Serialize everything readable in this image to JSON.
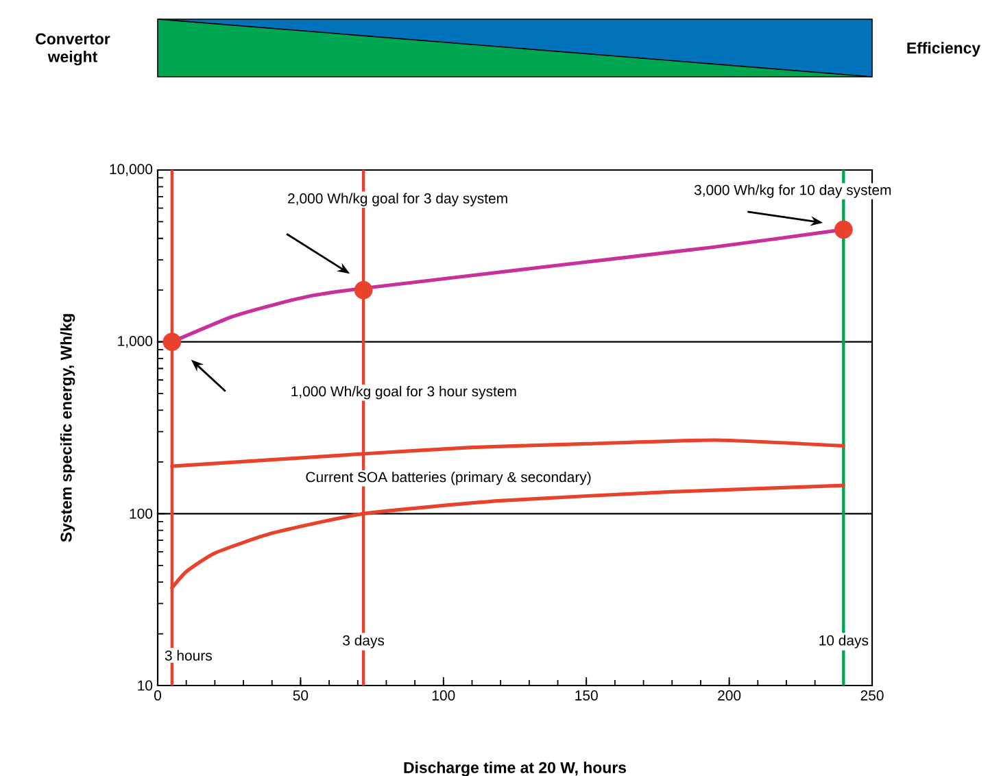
{
  "chart_data": {
    "type": "line",
    "xlabel": "Discharge time at 20 W, hours",
    "ylabel": "System specific energy, Wh/kg",
    "log": "y",
    "grid": "y",
    "xlim": [
      0,
      250
    ],
    "xticks": [
      0,
      50,
      100,
      150,
      200,
      250
    ],
    "ylim": [
      10,
      10000
    ],
    "yticks": [
      10,
      100,
      {
        "value": 1000,
        "label": "1,000"
      },
      {
        "value": 10000,
        "label": "10,000"
      }
    ],
    "series": [
      {
        "color": "#c9309b",
        "marker": "none",
        "line_style": "solid",
        "x": [
          5,
          26,
          41,
          55,
          72,
          137,
          194,
          240
        ],
        "values": [
          1000,
          1400,
          1650,
          1870,
          2050,
          2750,
          3550,
          4500
        ]
      },
      {
        "color": "#e8412c",
        "marker": "none",
        "line_style": "solid",
        "x": [
          5,
          72,
          110,
          150,
          195,
          240
        ],
        "values": [
          189,
          223,
          243,
          255,
          268,
          248
        ]
      },
      {
        "color": "#e8412c",
        "marker": "none",
        "line_style": "solid",
        "x": [
          5,
          10,
          20,
          40,
          72,
          120,
          180,
          240
        ],
        "values": [
          37,
          46,
          59,
          77,
          100,
          119,
          134,
          146
        ]
      },
      {
        "type": "scatter",
        "color": "#e8412c",
        "marker": "circle",
        "x": [
          5,
          72,
          240
        ],
        "values": [
          1000,
          2000,
          4500
        ]
      }
    ],
    "ref_lines": [
      {
        "axis": "x",
        "value": 5,
        "label": "3 hours",
        "color": "#e8412c"
      },
      {
        "axis": "x",
        "value": 72,
        "label": "3 days",
        "color": "#e8412c"
      },
      {
        "axis": "x",
        "value": 240,
        "label": "10 days",
        "color": "#00a651"
      }
    ],
    "annotations": [
      "Convertor weight",
      "Efficiency",
      "2,000 Wh/kg goal for 3 day system",
      "3,000 Wh/kg for 10 day system",
      "1,000 Wh/kg goal for 3 hour system",
      "Current SOA batteries (primary & secondary)"
    ]
  }
}
